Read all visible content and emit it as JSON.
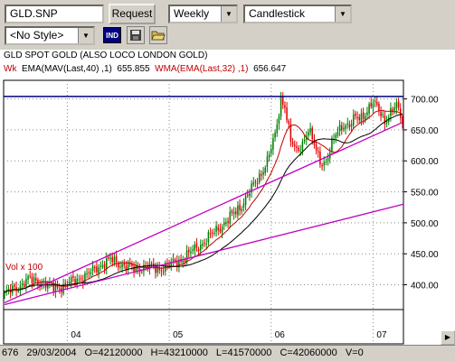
{
  "toolbar": {
    "symbol": "GLD.SNP",
    "request_label": "Request",
    "period": "Weekly",
    "chart_type": "Candlestick",
    "style": "<No Style>",
    "ind_label": "IND"
  },
  "chart": {
    "title": "GLD SPOT GOLD (ALSO LOCO LONDON GOLD)",
    "legend_prefix": "Wk",
    "legend_ema": "EMA(MAV(Last,40) ,1)",
    "legend_ema_value": "655.855",
    "legend_wma": "WMA(EMA(Last,32) ,1)",
    "legend_wma_value": "656.647",
    "vol_label": "Vol x 100",
    "y_ticks": [
      "700.00",
      "650.00",
      "600.00",
      "550.00",
      "500.00",
      "450.00",
      "400.00"
    ],
    "x_ticks": [
      "04",
      "05",
      "06",
      "07"
    ]
  },
  "status": {
    "count": "676",
    "date": "29/03/2004",
    "open": "O=42120000",
    "high": "H=43210000",
    "low": "L=41570000",
    "close": "C=42060000",
    "vol": "V=0"
  },
  "colors": {
    "up": "#008000",
    "down": "#e00000",
    "ema": "#000000",
    "wma": "#c00000",
    "trend": "#c000c0",
    "resistance": "#000080"
  },
  "chart_data": {
    "type": "candlestick",
    "title": "GLD SPOT GOLD (ALSO LOCO LONDON GOLD)",
    "ylim": [
      360,
      730
    ],
    "y_ticks": [
      700,
      650,
      600,
      550,
      500,
      450,
      400
    ],
    "x_ticks": [
      "04",
      "05",
      "06",
      "07"
    ],
    "anchors": [
      {
        "i": 0,
        "v": 385
      },
      {
        "i": 6,
        "v": 395
      },
      {
        "i": 12,
        "v": 408
      },
      {
        "i": 18,
        "v": 405
      },
      {
        "i": 24,
        "v": 395
      },
      {
        "i": 30,
        "v": 398
      },
      {
        "i": 36,
        "v": 408
      },
      {
        "i": 42,
        "v": 415
      },
      {
        "i": 48,
        "v": 430
      },
      {
        "i": 54,
        "v": 440
      },
      {
        "i": 60,
        "v": 433
      },
      {
        "i": 66,
        "v": 425
      },
      {
        "i": 72,
        "v": 430
      },
      {
        "i": 78,
        "v": 425
      },
      {
        "i": 84,
        "v": 432
      },
      {
        "i": 90,
        "v": 440
      },
      {
        "i": 96,
        "v": 455
      },
      {
        "i": 102,
        "v": 470
      },
      {
        "i": 108,
        "v": 488
      },
      {
        "i": 114,
        "v": 505
      },
      {
        "i": 120,
        "v": 525
      },
      {
        "i": 126,
        "v": 555
      },
      {
        "i": 130,
        "v": 575
      },
      {
        "i": 134,
        "v": 600
      },
      {
        "i": 138,
        "v": 640
      },
      {
        "i": 141,
        "v": 700
      },
      {
        "i": 143,
        "v": 690
      },
      {
        "i": 146,
        "v": 630
      },
      {
        "i": 149,
        "v": 615
      },
      {
        "i": 152,
        "v": 630
      },
      {
        "i": 155,
        "v": 650
      },
      {
        "i": 158,
        "v": 625
      },
      {
        "i": 161,
        "v": 600
      },
      {
        "i": 164,
        "v": 598
      },
      {
        "i": 167,
        "v": 625
      },
      {
        "i": 170,
        "v": 650
      },
      {
        "i": 173,
        "v": 660
      },
      {
        "i": 176,
        "v": 655
      },
      {
        "i": 179,
        "v": 670
      },
      {
        "i": 182,
        "v": 672
      },
      {
        "i": 185,
        "v": 680
      },
      {
        "i": 188,
        "v": 692
      },
      {
        "i": 191,
        "v": 685
      },
      {
        "i": 194,
        "v": 665
      },
      {
        "i": 197,
        "v": 675
      },
      {
        "i": 200,
        "v": 690
      },
      {
        "i": 203,
        "v": 668
      }
    ],
    "bars": 204,
    "resistance": 704,
    "trendlines": [
      {
        "from": [
          0,
          371
        ],
        "to": [
          203,
          662
        ]
      },
      {
        "from": [
          0,
          368
        ],
        "to": [
          220,
          530
        ]
      }
    ]
  }
}
